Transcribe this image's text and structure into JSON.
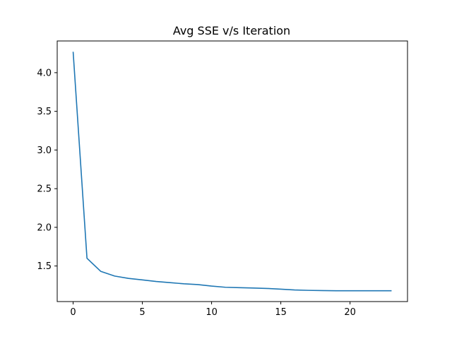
{
  "chart_data": {
    "type": "line",
    "title": "Avg SSE v/s Iteration",
    "xlabel": "",
    "ylabel": "",
    "xlim": [
      -1.15,
      24.15
    ],
    "ylim": [
      1.04,
      4.41
    ],
    "xticks": [
      0,
      5,
      10,
      15,
      20
    ],
    "yticks": [
      1.5,
      2.0,
      2.5,
      3.0,
      3.5,
      4.0
    ],
    "xtick_labels": [
      "0",
      "5",
      "10",
      "15",
      "20"
    ],
    "ytick_labels": [
      "1.5",
      "2.0",
      "2.5",
      "3.0",
      "3.5",
      "4.0"
    ],
    "grid": false,
    "series": [
      {
        "color": "#1f77b4",
        "x": [
          0,
          1,
          2,
          3,
          4,
          5,
          6,
          7,
          8,
          9,
          10,
          11,
          12,
          13,
          14,
          15,
          16,
          17,
          18,
          19,
          20,
          21,
          22,
          23
        ],
        "y": [
          4.27,
          1.6,
          1.43,
          1.37,
          1.34,
          1.32,
          1.3,
          1.285,
          1.27,
          1.26,
          1.24,
          1.225,
          1.22,
          1.215,
          1.21,
          1.2,
          1.19,
          1.185,
          1.182,
          1.18,
          1.18,
          1.18,
          1.18,
          1.18
        ]
      }
    ]
  }
}
